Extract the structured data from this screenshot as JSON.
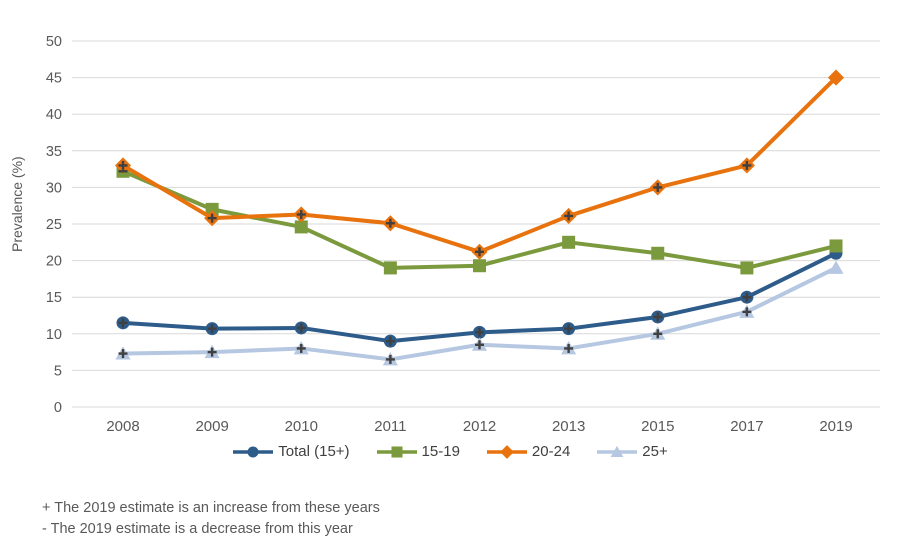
{
  "chart_data": {
    "type": "line",
    "title": "",
    "xlabel": "",
    "ylabel": "Prevalence (%)",
    "ylim": [
      0,
      50
    ],
    "ytick_step": 5,
    "grid": true,
    "legend_position": "bottom",
    "gridline_color": "#D9D9D9",
    "axis_text_color": "#595959",
    "flag_color": "#404040",
    "categories": [
      "2008",
      "2009",
      "2010",
      "2011",
      "2012",
      "2013",
      "2015",
      "2017",
      "2019"
    ],
    "series": [
      {
        "name": "Total (15+)",
        "color": "#2E5C8A",
        "marker": "circle",
        "values": [
          11.5,
          10.7,
          10.8,
          9,
          10.2,
          10.7,
          12.3,
          15,
          21
        ],
        "point_flags": [
          "+",
          "+",
          "+",
          "+",
          "+",
          "+",
          "+",
          "+",
          ""
        ]
      },
      {
        "name": "15-19",
        "color": "#7A9A3D",
        "marker": "square",
        "values": [
          32.2,
          27,
          24.6,
          19,
          19.3,
          22.5,
          21,
          19,
          22
        ],
        "point_flags": [
          "-",
          "",
          "",
          "",
          "",
          "",
          "",
          "",
          ""
        ]
      },
      {
        "name": "20-24",
        "color": "#E8720D",
        "marker": "diamond",
        "values": [
          33,
          25.8,
          26.3,
          25.1,
          21.2,
          26.1,
          30,
          33,
          45
        ],
        "point_flags": [
          "+",
          "+",
          "+",
          "+",
          "+",
          "+",
          "+",
          "+",
          ""
        ]
      },
      {
        "name": "25+",
        "color": "#B5C7E1",
        "marker": "triangle",
        "values": [
          7.3,
          7.5,
          8,
          6.5,
          8.5,
          8,
          10,
          13,
          19
        ],
        "point_flags": [
          "+",
          "+",
          "+",
          "+",
          "+",
          "+",
          "+",
          "+",
          ""
        ]
      }
    ]
  },
  "footnotes": {
    "line1": "+ The 2019 estimate is an increase from these years",
    "line2": "- The 2019 estimate is a decrease from this year"
  }
}
